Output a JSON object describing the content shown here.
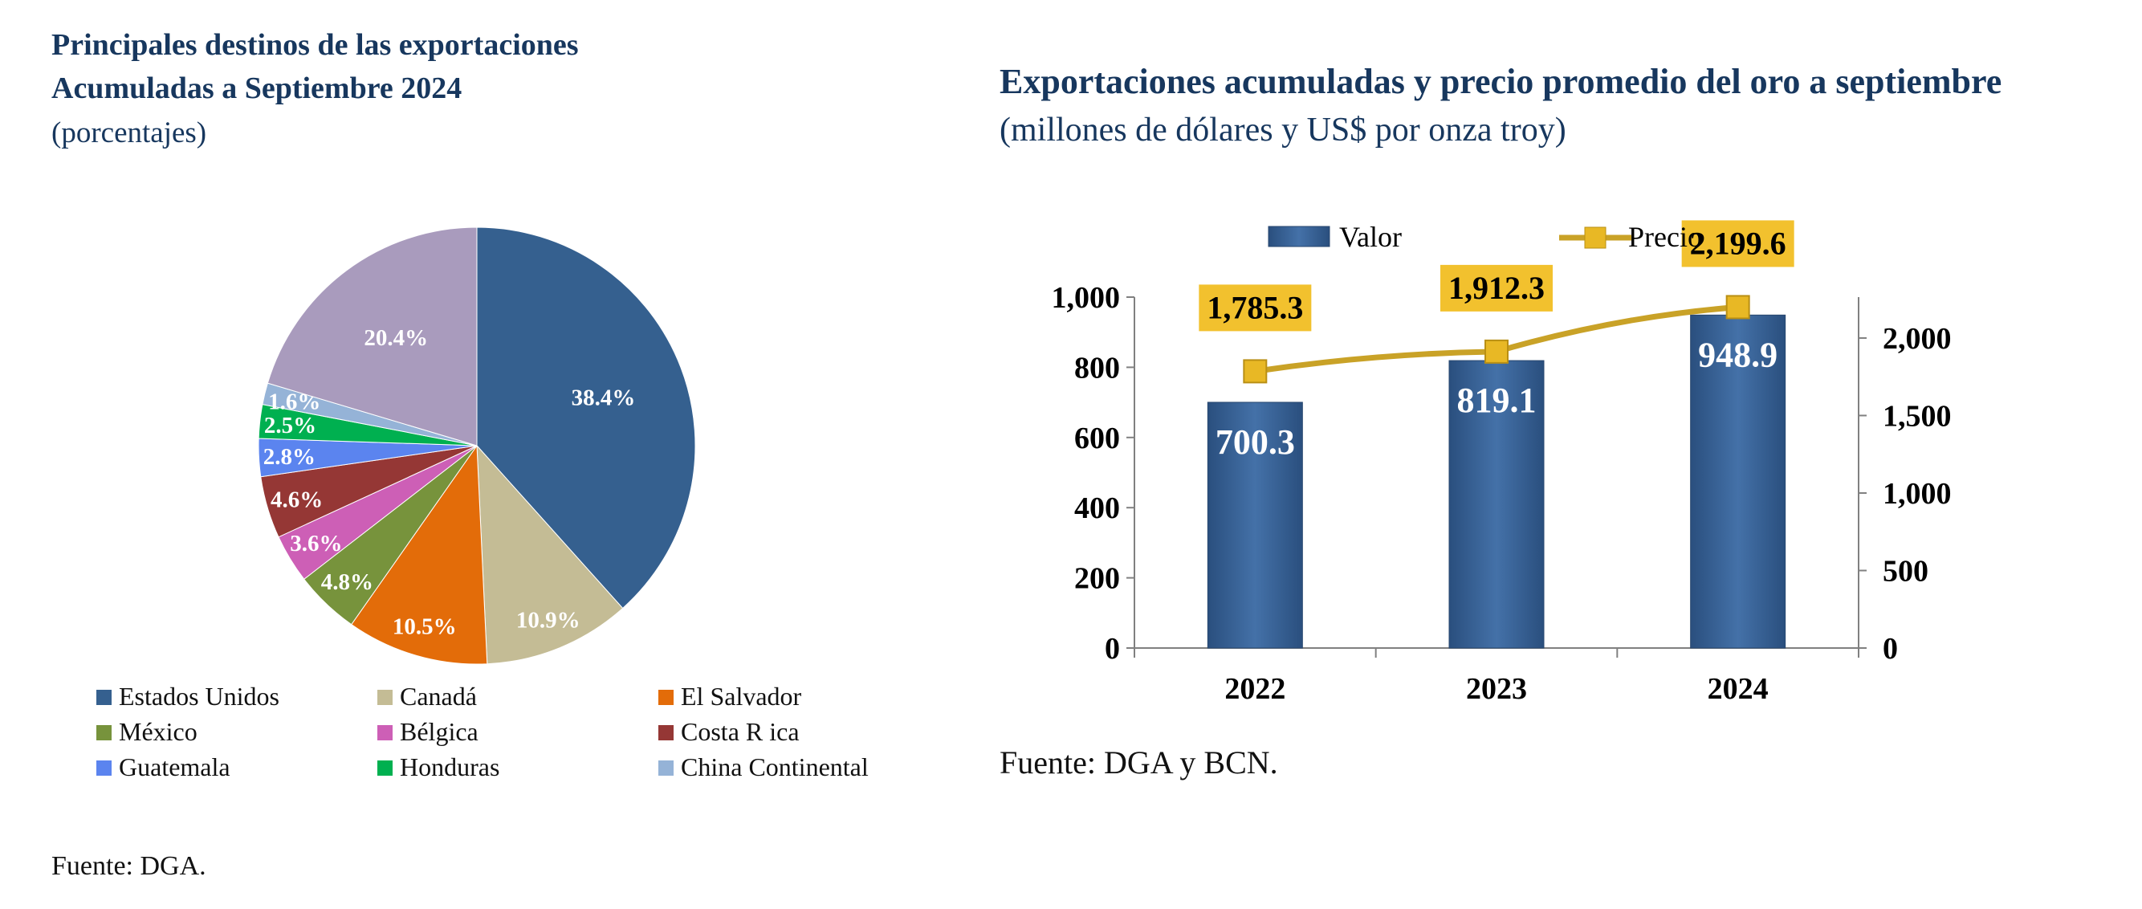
{
  "chart_data": [
    {
      "type": "pie",
      "title": "Principales destinos de las exportaciones",
      "title_line2": "Acumuladas a Septiembre 2024",
      "subtitle": "(porcentajes)",
      "source": "Fuente: DGA.",
      "legend_position": "bottom",
      "slices": [
        {
          "label": "Estados Unidos",
          "value": 38.4,
          "value_label": "38.4%",
          "color": "#35608f"
        },
        {
          "label": "Canadá",
          "value": 10.9,
          "value_label": "10.9%",
          "color": "#c4bc95"
        },
        {
          "label": "El Salvador",
          "value": 10.5,
          "value_label": "10.5%",
          "color": "#e36c09"
        },
        {
          "label": "México",
          "value": 4.8,
          "value_label": "4.8%",
          "color": "#77933c"
        },
        {
          "label": "Bélgica",
          "value": 3.6,
          "value_label": "3.6%",
          "color": "#cd5fb6"
        },
        {
          "label": "Costa R ica",
          "value": 4.6,
          "value_label": "4.6%",
          "color": "#953735"
        },
        {
          "label": "Guatemala",
          "value": 2.8,
          "value_label": "2.8%",
          "color": "#5b84ef"
        },
        {
          "label": "Honduras",
          "value": 2.5,
          "value_label": "2.5%",
          "color": "#00b050"
        },
        {
          "label": "China Continental",
          "value": 1.6,
          "value_label": "1.6%",
          "color": "#95b3d7"
        },
        {
          "label": "",
          "value": 20.4,
          "value_label": "20.4%",
          "color": "#a99bbd"
        }
      ]
    },
    {
      "type": "bar",
      "title": "Exportaciones acumuladas y precio promedio del oro a septiembre",
      "subtitle": "(millones de dólares y US$ por onza troy)",
      "source": "Fuente: DGA y BCN.",
      "legend_position": "top",
      "categories": [
        "2022",
        "2023",
        "2024"
      ],
      "series": [
        {
          "name": "Valor",
          "type": "bar",
          "axis": "left",
          "values": [
            700.3,
            819.1,
            948.9
          ],
          "value_labels": [
            "700.3",
            "819.1",
            "948.9"
          ],
          "color": "#3b6497"
        },
        {
          "name": "Precio",
          "type": "line",
          "axis": "right",
          "values": [
            1785.3,
            1912.3,
            2199.6
          ],
          "value_labels": [
            "1,785.3",
            "1,912.3",
            "2,199.6"
          ],
          "color": "#c9a227",
          "label_bg": "#f2c12e"
        }
      ],
      "y_left": {
        "min": 0,
        "max": 1000,
        "ticks": [
          0,
          200,
          400,
          600,
          800,
          1000
        ],
        "tick_labels": [
          "0",
          "200",
          "400",
          "600",
          "800",
          "1,000"
        ]
      },
      "y_right": {
        "min": 0,
        "max": 2264,
        "ticks": [
          0,
          500,
          1000,
          1500,
          2000
        ],
        "tick_labels": [
          "0",
          "500",
          "1,000",
          "1,500",
          "2,000"
        ]
      },
      "grid": false
    }
  ]
}
